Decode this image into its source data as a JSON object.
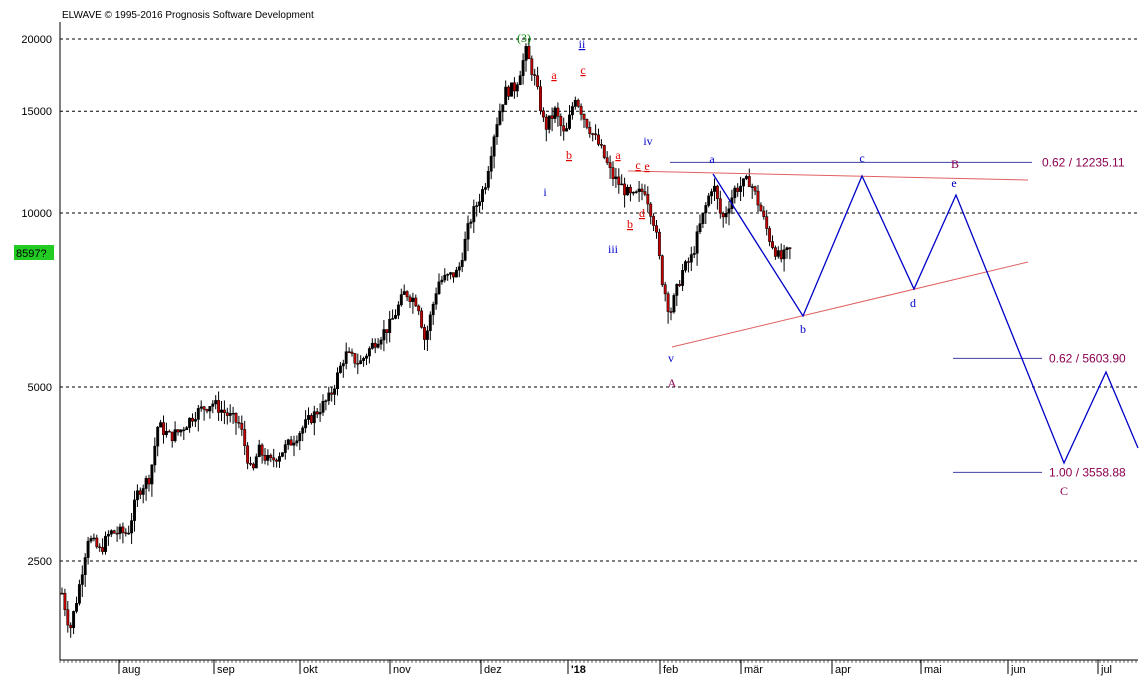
{
  "app": {
    "watermark": "ELWAVE © 1995-2016 Prognosis Software Development"
  },
  "price_badge": {
    "text": "8597?"
  },
  "colors": {
    "grid": "#000000",
    "bull_candle": "#000000",
    "bear_candle": "#c00000",
    "wave_red": "#e00000",
    "wave_blue": "#0000c8",
    "wave_green": "#008000",
    "wave_purple": "#8b0050",
    "projection": "#0000c8",
    "triangle": "#e06060",
    "badge_bg": "#22cc22"
  },
  "chart_data": {
    "type": "candlestick",
    "y_scale": "log",
    "ylim": [
      1800,
      23000
    ],
    "y_ticks": [
      "20000",
      "15000",
      "10000",
      "5000",
      "2500"
    ],
    "x_labels": [
      "aug",
      "sep",
      "okt",
      "nov",
      "dez",
      "'18",
      "feb",
      "mär",
      "apr",
      "mai",
      "jun",
      "jul"
    ],
    "grid": "horizontal dashed",
    "fib_levels": [
      {
        "label": "0.62 / 12235.11",
        "value": 12235.11
      },
      {
        "label": "0.62 / 5603.90",
        "value": 5603.9
      },
      {
        "label": "1.00 / 3558.88",
        "value": 3558.88
      }
    ],
    "wave_labels": [
      {
        "text": "(3)",
        "color": "green"
      },
      {
        "text": "ii",
        "color": "blue"
      },
      {
        "text": "a",
        "color": "red"
      },
      {
        "text": "c",
        "color": "red"
      },
      {
        "text": "b",
        "color": "red"
      },
      {
        "text": "i",
        "color": "blue"
      },
      {
        "text": "iv",
        "color": "blue"
      },
      {
        "text": "a",
        "color": "red"
      },
      {
        "text": "c",
        "color": "red"
      },
      {
        "text": "e",
        "color": "red"
      },
      {
        "text": "b",
        "color": "red"
      },
      {
        "text": "d",
        "color": "red"
      },
      {
        "text": "iii",
        "color": "blue"
      },
      {
        "text": "v",
        "color": "blue"
      },
      {
        "text": "A",
        "color": "purple"
      },
      {
        "text": "a",
        "color": "blue"
      },
      {
        "text": "b",
        "color": "blue"
      },
      {
        "text": "c",
        "color": "blue"
      },
      {
        "text": "B",
        "color": "purple"
      },
      {
        "text": "e",
        "color": "blue"
      },
      {
        "text": "d",
        "color": "blue"
      },
      {
        "text": "C",
        "color": "purple"
      }
    ]
  }
}
